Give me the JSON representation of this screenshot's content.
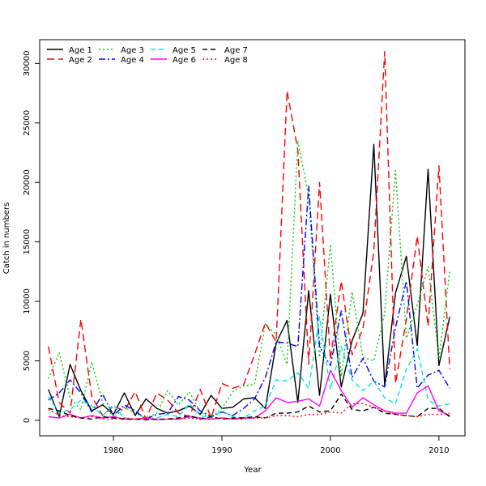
{
  "chart_data": {
    "type": "line",
    "title": "",
    "xlabel": "Year",
    "ylabel": "Catch in numbers",
    "xlim": [
      1973.2,
      2012.4
    ],
    "ylim": [
      -1300,
      32000
    ],
    "x_ticks": [
      1980,
      1990,
      2000,
      2010
    ],
    "y_ticks": [
      0,
      5000,
      10000,
      15000,
      20000,
      25000,
      30000
    ],
    "legend_position": "top-left",
    "x": [
      1974,
      1975,
      1976,
      1977,
      1978,
      1979,
      1980,
      1981,
      1982,
      1983,
      1984,
      1985,
      1986,
      1987,
      1988,
      1989,
      1990,
      1991,
      1992,
      1993,
      1994,
      1995,
      1996,
      1997,
      1998,
      1999,
      2000,
      2001,
      2002,
      2003,
      2004,
      2005,
      2006,
      2007,
      2008,
      2009,
      2010,
      2011
    ],
    "series": [
      {
        "name": "Age 1",
        "color": "#000000",
        "dash": "solid",
        "values": [
          2600,
          300,
          4700,
          2500,
          800,
          1300,
          500,
          2300,
          400,
          1800,
          1000,
          600,
          800,
          1200,
          500,
          2100,
          1000,
          1100,
          1800,
          1900,
          1000,
          6500,
          8400,
          1500,
          10900,
          2100,
          10600,
          2800,
          6700,
          9000,
          23200,
          2900,
          10700,
          13800,
          6300,
          21100,
          4600,
          8700
        ]
      },
      {
        "name": "Age 2",
        "color": "#ff0000",
        "dash": "long",
        "values": [
          6200,
          1500,
          600,
          8500,
          2000,
          400,
          1200,
          800,
          2400,
          100,
          2300,
          1700,
          600,
          300,
          2600,
          200,
          3100,
          2700,
          3000,
          5500,
          8200,
          6600,
          27700,
          22700,
          4700,
          20000,
          5100,
          11700,
          5500,
          7700,
          14200,
          31000,
          3100,
          8500,
          15500,
          7900,
          21400,
          4300
        ]
      },
      {
        "name": "Age 3",
        "color": "#00cc00",
        "dash": "dotted",
        "values": [
          3500,
          5700,
          1900,
          900,
          4900,
          1500,
          200,
          1100,
          600,
          200,
          600,
          2500,
          1300,
          2400,
          700,
          200,
          1000,
          2400,
          2900,
          3000,
          8100,
          7200,
          4700,
          23500,
          18800,
          5300,
          14800,
          3700,
          10800,
          5300,
          5000,
          9000,
          21000,
          6900,
          9700,
          12900,
          5200,
          12500
        ]
      },
      {
        "name": "Age 4",
        "color": "#0000ff",
        "dash": "dashdot",
        "values": [
          1700,
          2300,
          3400,
          2300,
          700,
          2200,
          400,
          1300,
          800,
          100,
          500,
          600,
          2000,
          1700,
          800,
          300,
          700,
          400,
          1000,
          1800,
          3600,
          6600,
          6500,
          6200,
          19700,
          6200,
          4600,
          9200,
          3600,
          5200,
          3300,
          2800,
          7800,
          11700,
          2700,
          3800,
          4200,
          2700
        ]
      },
      {
        "name": "Age 5",
        "color": "#00e5e5",
        "dash": "dashed",
        "values": [
          2000,
          600,
          900,
          1700,
          1200,
          400,
          1300,
          200,
          100,
          100,
          200,
          500,
          300,
          1400,
          400,
          200,
          800,
          300,
          200,
          800,
          1200,
          3400,
          3300,
          4000,
          2700,
          8700,
          2600,
          6200,
          3400,
          2500,
          3300,
          1900,
          1400,
          4300,
          6000,
          1700,
          1200,
          1400
        ]
      },
      {
        "name": "Age 6",
        "color": "#ff00ff",
        "dash": "solid",
        "values": [
          300,
          200,
          500,
          200,
          400,
          200,
          300,
          100,
          100,
          200,
          50,
          100,
          100,
          300,
          200,
          100,
          200,
          100,
          200,
          200,
          800,
          1900,
          1500,
          1600,
          1800,
          1200,
          4200,
          2500,
          1100,
          1900,
          1300,
          800,
          600,
          600,
          2300,
          2900,
          800,
          400
        ]
      },
      {
        "name": "Age 7",
        "color": "#000000",
        "dash": "dashed",
        "values": [
          1000,
          800,
          400,
          200,
          100,
          300,
          200,
          100,
          100,
          50,
          100,
          100,
          200,
          400,
          100,
          300,
          100,
          200,
          200,
          300,
          200,
          600,
          600,
          700,
          1200,
          700,
          800,
          2200,
          900,
          800,
          1100,
          600,
          500,
          400,
          300,
          1000,
          1000,
          300
        ]
      },
      {
        "name": "Age 8",
        "color": "#ff0000",
        "dash": "dotted",
        "values": [
          900,
          400,
          300,
          200,
          300,
          100,
          100,
          200,
          100,
          100,
          100,
          100,
          100,
          200,
          100,
          100,
          200,
          100,
          100,
          200,
          200,
          400,
          400,
          300,
          500,
          500,
          700,
          600,
          1400,
          1400,
          1100,
          800,
          500,
          400,
          300,
          500,
          500,
          600
        ]
      }
    ]
  }
}
